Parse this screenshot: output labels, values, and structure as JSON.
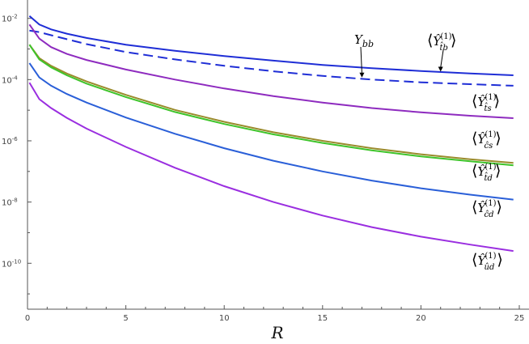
{
  "chart_data": {
    "type": "line",
    "xlabel": "R",
    "ylabel": "",
    "xlim": [
      0,
      25
    ],
    "ylim_log10": [
      -11.5,
      -1.4
    ],
    "y_scale": "log",
    "x_ticks": [
      0,
      5,
      10,
      15,
      20,
      25
    ],
    "x_tick_labels": [
      "0",
      "5",
      "10",
      "15",
      "20",
      "25"
    ],
    "y_ticks_log10": [
      -2,
      -4,
      -6,
      -8,
      -10
    ],
    "y_tick_labels": [
      "10^-2",
      "10^-4",
      "10^-6",
      "10^-8",
      "10^-10"
    ],
    "x": [
      0.1,
      0.6,
      1.2,
      2,
      3,
      5,
      7.5,
      10,
      12.5,
      15,
      17.5,
      20,
      22.5,
      24.7
    ],
    "series": [
      {
        "name": "⟨Ŷ_{t̂b}^{(1)}⟩",
        "color": "#1f2ed6",
        "dash": "solid",
        "log10_values": [
          -1.92,
          -2.2,
          -2.36,
          -2.5,
          -2.64,
          -2.86,
          -3.06,
          -3.23,
          -3.38,
          -3.52,
          -3.63,
          -3.72,
          -3.8,
          -3.86
        ]
      },
      {
        "name": "Y_bb",
        "color": "#1f2ed6",
        "dash": "dashed",
        "log10_values": [
          -2.4,
          -2.45,
          -2.55,
          -2.68,
          -2.84,
          -3.1,
          -3.34,
          -3.55,
          -3.73,
          -3.88,
          -4.0,
          -4.09,
          -4.15,
          -4.2
        ]
      },
      {
        "name": "⟨Ŷ_{t̂s}^{(1)}⟩",
        "color": "#8e2bbf",
        "dash": "solid",
        "log10_values": [
          -2.2,
          -2.66,
          -2.94,
          -3.16,
          -3.36,
          -3.67,
          -4.0,
          -4.29,
          -4.54,
          -4.75,
          -4.93,
          -5.07,
          -5.18,
          -5.26
        ]
      },
      {
        "name": "⟨Ŷ_{ĉs}^{(1)}⟩",
        "color": "#9a8b2c",
        "dash": "solid",
        "log10_values": [
          -2.86,
          -3.3,
          -3.55,
          -3.8,
          -4.06,
          -4.5,
          -4.99,
          -5.38,
          -5.72,
          -6.0,
          -6.24,
          -6.44,
          -6.6,
          -6.72
        ]
      },
      {
        "name": "⟨Ŷ_{t̂d}^{(1)}⟩",
        "color": "#3ec42a",
        "dash": "solid",
        "log10_values": [
          -2.86,
          -3.34,
          -3.6,
          -3.86,
          -4.13,
          -4.57,
          -5.06,
          -5.45,
          -5.79,
          -6.07,
          -6.31,
          -6.51,
          -6.67,
          -6.8
        ]
      },
      {
        "name": "⟨Ŷ_{ĉd}^{(1)}⟩",
        "color": "#2a5fd8",
        "dash": "solid",
        "log10_values": [
          -3.46,
          -3.93,
          -4.2,
          -4.47,
          -4.75,
          -5.24,
          -5.77,
          -6.24,
          -6.65,
          -7.0,
          -7.3,
          -7.55,
          -7.76,
          -7.92
        ]
      },
      {
        "name": "⟨Ŷ_{ûd}^{(1)}⟩",
        "color": "#9a2ee0",
        "dash": "solid",
        "log10_values": [
          -4.1,
          -4.64,
          -4.93,
          -5.25,
          -5.6,
          -6.2,
          -6.88,
          -7.48,
          -8.0,
          -8.44,
          -8.82,
          -9.13,
          -9.39,
          -9.6
        ]
      }
    ],
    "annotations": [
      {
        "text": "Y_bb",
        "target_series": "Y_bb",
        "arrow_x": 17,
        "arrow_log10": -3.93
      },
      {
        "text": "⟨Ŷ_{t̂b}^{(1)}⟩",
        "target_series": "⟨Ŷ_{t̂b}^{(1)}⟩",
        "arrow_x": 21,
        "arrow_log10": -3.74
      }
    ]
  },
  "labels": {
    "ybb": {
      "main": "Y",
      "sub": "bb"
    },
    "tb": {
      "hat": "t̂",
      "sub2": "b"
    },
    "ts": {
      "hat": "t̂",
      "sub2": "s"
    },
    "cs": {
      "hat": "ĉ",
      "sub2": "s"
    },
    "td": {
      "hat": "t̂",
      "sub2": "d"
    },
    "cd": {
      "hat": "ĉ",
      "sub2": "d"
    },
    "ud": {
      "hat": "û",
      "sub2": "d"
    },
    "common": {
      "langle": "⟨",
      "rangle": "⟩",
      "Y": "Ŷ",
      "sup": "(1)"
    }
  }
}
